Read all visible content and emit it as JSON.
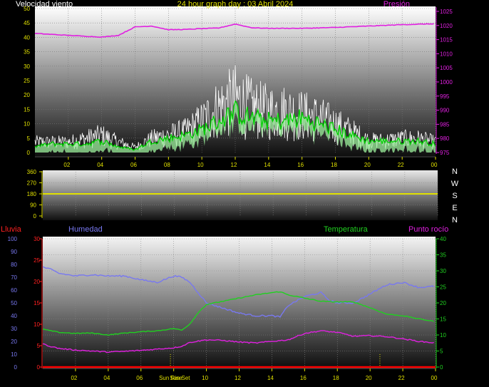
{
  "header": {
    "wind_label": "Velocidad viento",
    "title": "24 hour graph day : 03 Abril 2024",
    "pressure_label": "Presión"
  },
  "direction_labels": [
    "N",
    "W",
    "S",
    "E",
    "N"
  ],
  "bottom_header": {
    "rain_label": "Lluvia",
    "humidity_label": "Humedad",
    "temp_label": "Temperatura",
    "dew_label": "Punto rocío"
  },
  "sun_labels": [
    "Sun Rise",
    "Sun Set"
  ],
  "colors": {
    "wind_gust": "#ffffff",
    "wind_avg": "#00d000",
    "wind_avg_fill": "#9cf09c",
    "pressure": "#e020e0",
    "direction": "#e0e000",
    "humidity": "#7878f0",
    "temperature": "#20d020",
    "dew": "#e020e0",
    "rain": "#ff0000",
    "axis_text": "#e0e000",
    "pressure_text": "#e020e0",
    "temp_text": "#20d020",
    "humidity_text": "#7878f0",
    "rain_text": "#ff2020"
  },
  "chart_data": [
    {
      "type": "line",
      "x_ticks": [
        "02",
        "04",
        "06",
        "08",
        "10",
        "12",
        "14",
        "16",
        "18",
        "20",
        "22",
        "00"
      ],
      "y_left_ticks": [
        "0",
        "5",
        "10",
        "15",
        "20",
        "25",
        "30",
        "35",
        "40",
        "45",
        "50"
      ],
      "y_right_ticks": [
        "975",
        "980",
        "985",
        "990",
        "995",
        "1000",
        "1005",
        "1010",
        "1015",
        "1020",
        "1025"
      ],
      "y_left_range": [
        0,
        50
      ],
      "y_right_range": [
        975,
        1026
      ],
      "series": [
        {
          "name": "Velocidad viento",
          "unit_range": "0-50",
          "hours": [
            0,
            1,
            2,
            3,
            4,
            5,
            6,
            7,
            8,
            9,
            10,
            11,
            12,
            13,
            14,
            15,
            16,
            17,
            18,
            19,
            20,
            21,
            22,
            23,
            24
          ],
          "gust_peak": [
            6,
            6,
            6,
            8,
            10,
            6,
            3,
            8,
            10,
            12,
            18,
            26,
            31,
            26,
            24,
            24,
            22,
            20,
            16,
            12,
            7,
            7,
            8,
            8,
            6
          ],
          "avg": [
            2,
            3,
            3,
            3,
            4,
            2,
            1,
            4,
            5,
            6,
            8,
            11,
            14,
            12,
            11,
            11,
            12,
            10,
            8,
            6,
            4,
            4,
            4,
            4,
            3
          ]
        },
        {
          "name": "Presión",
          "hours": [
            0,
            2,
            4,
            5,
            6,
            7,
            8,
            9,
            10,
            11,
            12,
            13,
            14,
            16,
            18,
            20,
            22,
            24
          ],
          "values": [
            1017.2,
            1016.5,
            1015.9,
            1016.5,
            1019.5,
            1019.8,
            1018.5,
            1018.6,
            1018.9,
            1019.1,
            1020.5,
            1019.2,
            1019.0,
            1019.0,
            1019.3,
            1019.8,
            1020.3,
            1020.6
          ]
        }
      ]
    },
    {
      "type": "line",
      "y_ticks": [
        "0",
        "90",
        "180",
        "270",
        "360"
      ],
      "y_range": [
        0,
        360
      ],
      "series": [
        {
          "name": "direction",
          "hours": [
            0,
            24
          ],
          "values": [
            180,
            180
          ]
        }
      ]
    },
    {
      "type": "line",
      "x_ticks": [
        "02",
        "04",
        "06",
        "08",
        "10",
        "12",
        "14",
        "16",
        "18",
        "20",
        "22",
        "00"
      ],
      "y_left_outer_ticks": [
        "0",
        "10",
        "20",
        "30",
        "40",
        "50",
        "60",
        "70",
        "80",
        "90",
        "100"
      ],
      "y_left_inner_ticks": [
        "0",
        "5",
        "10",
        "15",
        "20",
        "25",
        "30"
      ],
      "y_right_ticks": [
        "0",
        "5",
        "10",
        "15",
        "20",
        "25",
        "30",
        "35",
        "40"
      ],
      "y_right_range": [
        0,
        40
      ],
      "y_left_outer_range": [
        0,
        100
      ],
      "y_left_inner_range": [
        0,
        30
      ],
      "series": [
        {
          "name": "Humedad",
          "hours": [
            0,
            0.5,
            1,
            2,
            3,
            4,
            5,
            6,
            7,
            8,
            8.5,
            9,
            10,
            11,
            12,
            13,
            14,
            14.5,
            15,
            16,
            17,
            17.5,
            18,
            19,
            20,
            21,
            22,
            23,
            24
          ],
          "values": [
            78,
            76,
            73,
            71,
            72,
            71,
            71,
            68,
            66,
            71,
            70,
            66,
            50,
            46,
            42,
            40,
            40,
            39,
            48,
            55,
            58,
            52,
            50,
            50,
            57,
            64,
            66,
            62,
            63
          ]
        },
        {
          "name": "Temperatura",
          "hours": [
            0,
            1,
            2,
            3,
            4,
            5,
            6,
            7,
            8,
            8.5,
            9,
            9.5,
            10,
            11,
            12,
            13,
            14,
            14.5,
            15,
            16,
            17,
            18,
            19,
            20,
            21,
            22,
            23,
            24
          ],
          "values": [
            11.8,
            10.8,
            10.5,
            10.6,
            10.0,
            10.6,
            11.0,
            11.3,
            12.0,
            11.5,
            13.5,
            17.0,
            19.5,
            20.5,
            21.5,
            22.5,
            23.2,
            23.5,
            22.5,
            21.5,
            20.5,
            20.3,
            20.3,
            18.5,
            16.5,
            16.0,
            15.0,
            14.2
          ]
        },
        {
          "name": "Punto rocío",
          "hours": [
            0,
            0.5,
            1,
            2,
            3,
            4,
            5,
            6,
            7,
            8,
            8.5,
            9,
            10,
            11,
            12,
            13,
            14,
            15,
            16,
            17,
            18,
            19,
            20,
            21,
            22,
            23,
            24
          ],
          "values": [
            7.2,
            6.4,
            5.8,
            5.3,
            5.0,
            4.7,
            4.9,
            5.2,
            5.6,
            6.0,
            6.5,
            7.7,
            8.5,
            8.3,
            7.8,
            7.5,
            8.0,
            8.5,
            10.5,
            11.3,
            10.8,
            9.6,
            9.8,
            9.5,
            8.8,
            8.0,
            7.5
          ]
        },
        {
          "name": "Lluvia",
          "hours": [
            0,
            24
          ],
          "values": [
            0,
            0
          ]
        }
      ],
      "sunrise_hour": 7.8,
      "sunset_hour": 20.6
    }
  ]
}
